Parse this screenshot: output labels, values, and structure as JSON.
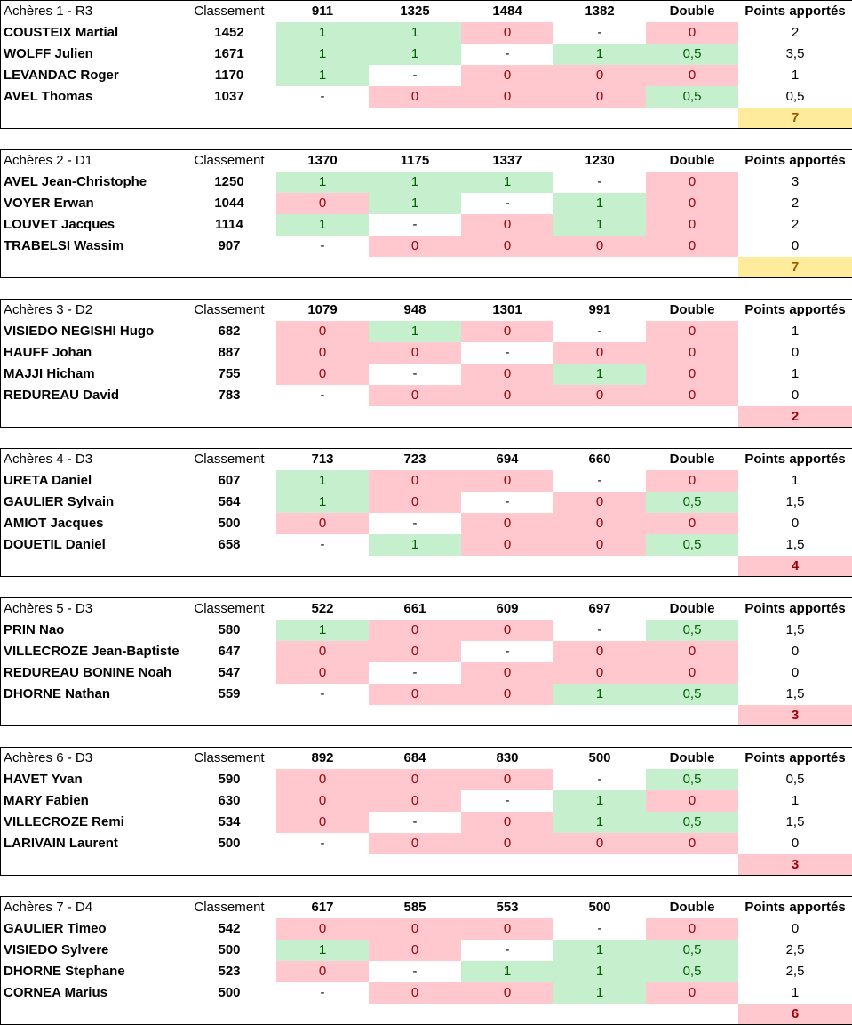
{
  "teams": [
    {
      "title": "Achères 1 - R3",
      "rank_header": "Classement",
      "opponents": [
        "911",
        "1325",
        "1484",
        "1382"
      ],
      "double_header": "Double",
      "points_header": "Points apportés",
      "players": [
        {
          "name": "COUSTEIX Martial",
          "rank": "1452",
          "matches": [
            "1",
            "1",
            "0",
            "-"
          ],
          "double": "0",
          "points": "2"
        },
        {
          "name": "WOLFF Julien",
          "rank": "1671",
          "matches": [
            "1",
            "1",
            "-",
            "1"
          ],
          "double": "0,5",
          "points": "3,5"
        },
        {
          "name": "LEVANDAC Roger",
          "rank": "1170",
          "matches": [
            "1",
            "-",
            "0",
            "0"
          ],
          "double": "0",
          "points": "1"
        },
        {
          "name": "AVEL Thomas",
          "rank": "1037",
          "matches": [
            "-",
            "0",
            "0",
            "0"
          ],
          "double": "0,5",
          "points": "0,5"
        }
      ],
      "total": "7",
      "total_status": "good"
    },
    {
      "title": "Achères 2 - D1",
      "rank_header": "Classement",
      "opponents": [
        "1370",
        "1175",
        "1337",
        "1230"
      ],
      "double_header": "Double",
      "points_header": "Points apportés",
      "players": [
        {
          "name": "AVEL Jean-Christophe",
          "rank": "1250",
          "matches": [
            "1",
            "1",
            "1",
            "-"
          ],
          "double": "0",
          "points": "3"
        },
        {
          "name": "VOYER Erwan",
          "rank": "1044",
          "matches": [
            "0",
            "1",
            "-",
            "1"
          ],
          "double": "0",
          "points": "2"
        },
        {
          "name": "LOUVET Jacques",
          "rank": "1114",
          "matches": [
            "1",
            "-",
            "0",
            "1"
          ],
          "double": "0",
          "points": "2"
        },
        {
          "name": "TRABELSI Wassim",
          "rank": "907",
          "matches": [
            "-",
            "0",
            "0",
            "0"
          ],
          "double": "0",
          "points": "0"
        }
      ],
      "total": "7",
      "total_status": "good"
    },
    {
      "title": "Achères 3 - D2",
      "rank_header": "Classement",
      "opponents": [
        "1079",
        "948",
        "1301",
        "991"
      ],
      "double_header": "Double",
      "points_header": "Points apportés",
      "players": [
        {
          "name": "VISIEDO NEGISHI Hugo",
          "rank": "682",
          "matches": [
            "0",
            "1",
            "0",
            "-"
          ],
          "double": "0",
          "points": "1"
        },
        {
          "name": "HAUFF Johan",
          "rank": "887",
          "matches": [
            "0",
            "0",
            "-",
            "0"
          ],
          "double": "0",
          "points": "0"
        },
        {
          "name": "MAJJI Hicham",
          "rank": "755",
          "matches": [
            "0",
            "-",
            "0",
            "1"
          ],
          "double": "0",
          "points": "1"
        },
        {
          "name": "REDUREAU David",
          "rank": "783",
          "matches": [
            "-",
            "0",
            "0",
            "0"
          ],
          "double": "0",
          "points": "0"
        }
      ],
      "total": "2",
      "total_status": "bad"
    },
    {
      "title": "Achères 4 - D3",
      "rank_header": "Classement",
      "opponents": [
        "713",
        "723",
        "694",
        "660"
      ],
      "double_header": "Double",
      "points_header": "Points apportés",
      "players": [
        {
          "name": "URETA Daniel",
          "rank": "607",
          "matches": [
            "1",
            "0",
            "0",
            "-"
          ],
          "double": "0",
          "points": "1"
        },
        {
          "name": "GAULIER Sylvain",
          "rank": "564",
          "matches": [
            "1",
            "0",
            "-",
            "0"
          ],
          "double": "0,5",
          "points": "1,5"
        },
        {
          "name": "AMIOT Jacques",
          "rank": "500",
          "matches": [
            "0",
            "-",
            "0",
            "0"
          ],
          "double": "0",
          "points": "0"
        },
        {
          "name": "DOUETIL Daniel",
          "rank": "658",
          "matches": [
            "-",
            "1",
            "0",
            "0"
          ],
          "double": "0,5",
          "points": "1,5"
        }
      ],
      "total": "4",
      "total_status": "bad"
    },
    {
      "title": "Achères 5 - D3",
      "rank_header": "Classement",
      "opponents": [
        "522",
        "661",
        "609",
        "697"
      ],
      "double_header": "Double",
      "points_header": "Points apportés",
      "players": [
        {
          "name": "PRIN Nao",
          "rank": "580",
          "matches": [
            "1",
            "0",
            "0",
            "-"
          ],
          "double": "0,5",
          "points": "1,5"
        },
        {
          "name": "VILLECROZE Jean-Baptiste",
          "rank": "647",
          "matches": [
            "0",
            "0",
            "-",
            "0"
          ],
          "double": "0",
          "points": "0"
        },
        {
          "name": "REDUREAU BONINE Noah",
          "rank": "547",
          "matches": [
            "0",
            "-",
            "0",
            "0"
          ],
          "double": "0",
          "points": "0"
        },
        {
          "name": "DHORNE Nathan",
          "rank": "559",
          "matches": [
            "-",
            "0",
            "0",
            "1"
          ],
          "double": "0,5",
          "points": "1,5"
        }
      ],
      "total": "3",
      "total_status": "bad"
    },
    {
      "title": "Achères 6 - D3",
      "rank_header": "Classement",
      "opponents": [
        "892",
        "684",
        "830",
        "500"
      ],
      "double_header": "Double",
      "points_header": "Points apportés",
      "players": [
        {
          "name": "HAVET Yvan",
          "rank": "590",
          "matches": [
            "0",
            "0",
            "0",
            "-"
          ],
          "double": "0,5",
          "points": "0,5"
        },
        {
          "name": "MARY Fabien",
          "rank": "630",
          "matches": [
            "0",
            "0",
            "-",
            "1"
          ],
          "double": "0",
          "points": "1"
        },
        {
          "name": "VILLECROZE Remi",
          "rank": "534",
          "matches": [
            "0",
            "-",
            "0",
            "1"
          ],
          "double": "0,5",
          "points": "1,5"
        },
        {
          "name": "LARIVAIN Laurent",
          "rank": "500",
          "matches": [
            "-",
            "0",
            "0",
            "0"
          ],
          "double": "0",
          "points": "0"
        }
      ],
      "total": "3",
      "total_status": "bad"
    },
    {
      "title": "Achères 7 - D4",
      "rank_header": "Classement",
      "opponents": [
        "617",
        "585",
        "553",
        "500"
      ],
      "double_header": "Double",
      "points_header": "Points apportés",
      "players": [
        {
          "name": "GAULIER Timeo",
          "rank": "542",
          "matches": [
            "0",
            "0",
            "0",
            "-"
          ],
          "double": "0",
          "points": "0"
        },
        {
          "name": "VISIEDO Sylvere",
          "rank": "500",
          "matches": [
            "1",
            "0",
            "-",
            "1"
          ],
          "double": "0,5",
          "points": "2,5"
        },
        {
          "name": "DHORNE Stephane",
          "rank": "523",
          "matches": [
            "0",
            "-",
            "1",
            "1"
          ],
          "double": "0,5",
          "points": "2,5"
        },
        {
          "name": "CORNEA Marius",
          "rank": "500",
          "matches": [
            "-",
            "0",
            "0",
            "1"
          ],
          "double": "0",
          "points": "1"
        }
      ],
      "total": "6",
      "total_status": "bad"
    }
  ]
}
